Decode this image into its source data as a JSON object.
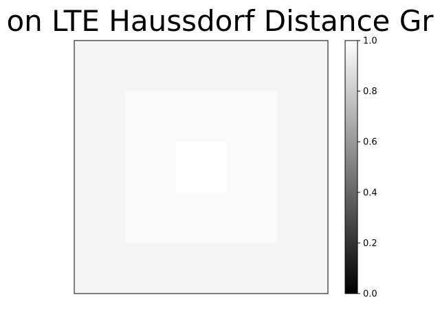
{
  "chart_data": {
    "type": "heatmap",
    "title": "on LTE Haussdorf Distance Gr",
    "xlabel": "",
    "ylabel": "",
    "rows": 5,
    "cols": 5,
    "values": [
      [
        0.96,
        0.96,
        0.96,
        0.96,
        0.96
      ],
      [
        0.96,
        0.98,
        0.98,
        0.98,
        0.96
      ],
      [
        0.96,
        0.98,
        1.0,
        0.98,
        0.96
      ],
      [
        0.96,
        0.98,
        0.98,
        0.98,
        0.96
      ],
      [
        0.96,
        0.96,
        0.96,
        0.96,
        0.96
      ]
    ],
    "colormap": "gray",
    "colorbar": {
      "range": [
        0.0,
        1.0
      ],
      "ticks": [
        0.0,
        0.2,
        0.4,
        0.6,
        0.8,
        1.0
      ],
      "tick_labels": [
        "0.0",
        "0.2",
        "0.4",
        "0.6",
        "0.8",
        "1.0"
      ]
    },
    "show_axis_ticks": false
  }
}
